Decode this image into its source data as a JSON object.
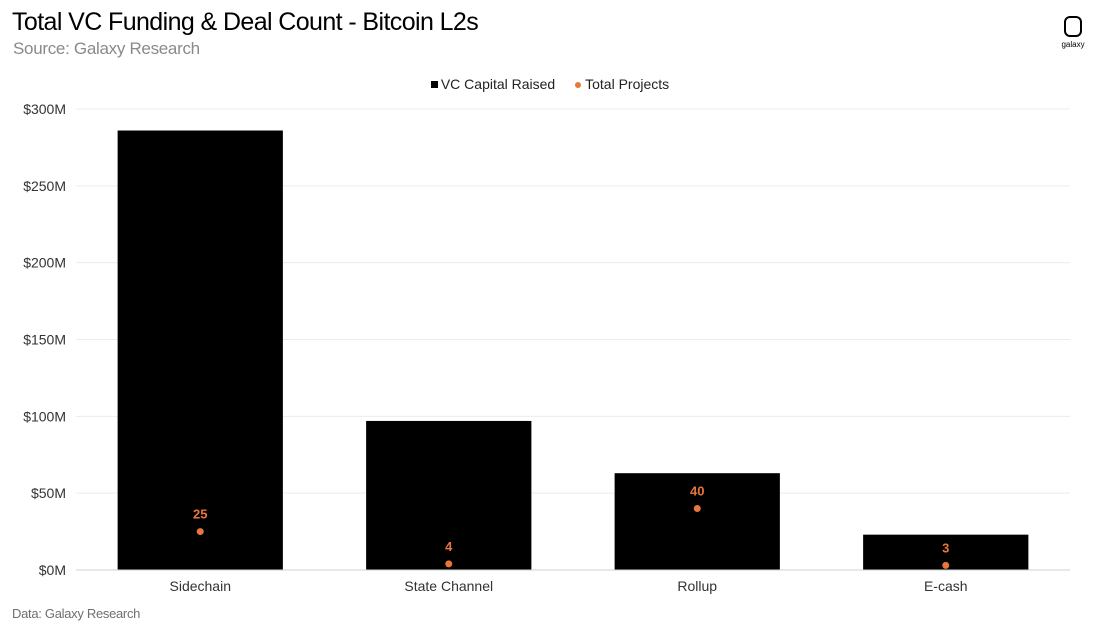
{
  "header": {
    "title": "Total VC Funding & Deal Count - Bitcoin L2s",
    "subtitle": "Source: Galaxy Research",
    "logo_text": "galaxy"
  },
  "footer": {
    "note": "Data: Galaxy Research"
  },
  "colors": {
    "bars": "#000000",
    "dots": "#E8763A",
    "grid": "#ececec",
    "axis_text": "#333333"
  },
  "chart_data": {
    "type": "bar",
    "title": "Total VC Funding & Deal Count - Bitcoin L2s",
    "subtitle": "Source: Galaxy Research",
    "categories": [
      "Sidechain",
      "State Channel",
      "Rollup",
      "E-cash"
    ],
    "series": [
      {
        "name": "VC Capital Raised",
        "type": "bar",
        "values": [
          286,
          97,
          63,
          23
        ],
        "unit": "$M"
      },
      {
        "name": "Total Projects",
        "type": "scatter",
        "values": [
          25,
          4,
          40,
          3
        ],
        "labels": [
          "25",
          "4",
          "40",
          "3"
        ]
      }
    ],
    "ylim": [
      0,
      300
    ],
    "yticks": [
      0,
      50,
      100,
      150,
      200,
      250,
      300
    ],
    "ytick_labels": [
      "$0M",
      "$50M",
      "$100M",
      "$150M",
      "$200M",
      "$250M",
      "$300M"
    ],
    "secondary_ylim": [
      0,
      300
    ],
    "grid": true,
    "legend_position": "top-center"
  }
}
